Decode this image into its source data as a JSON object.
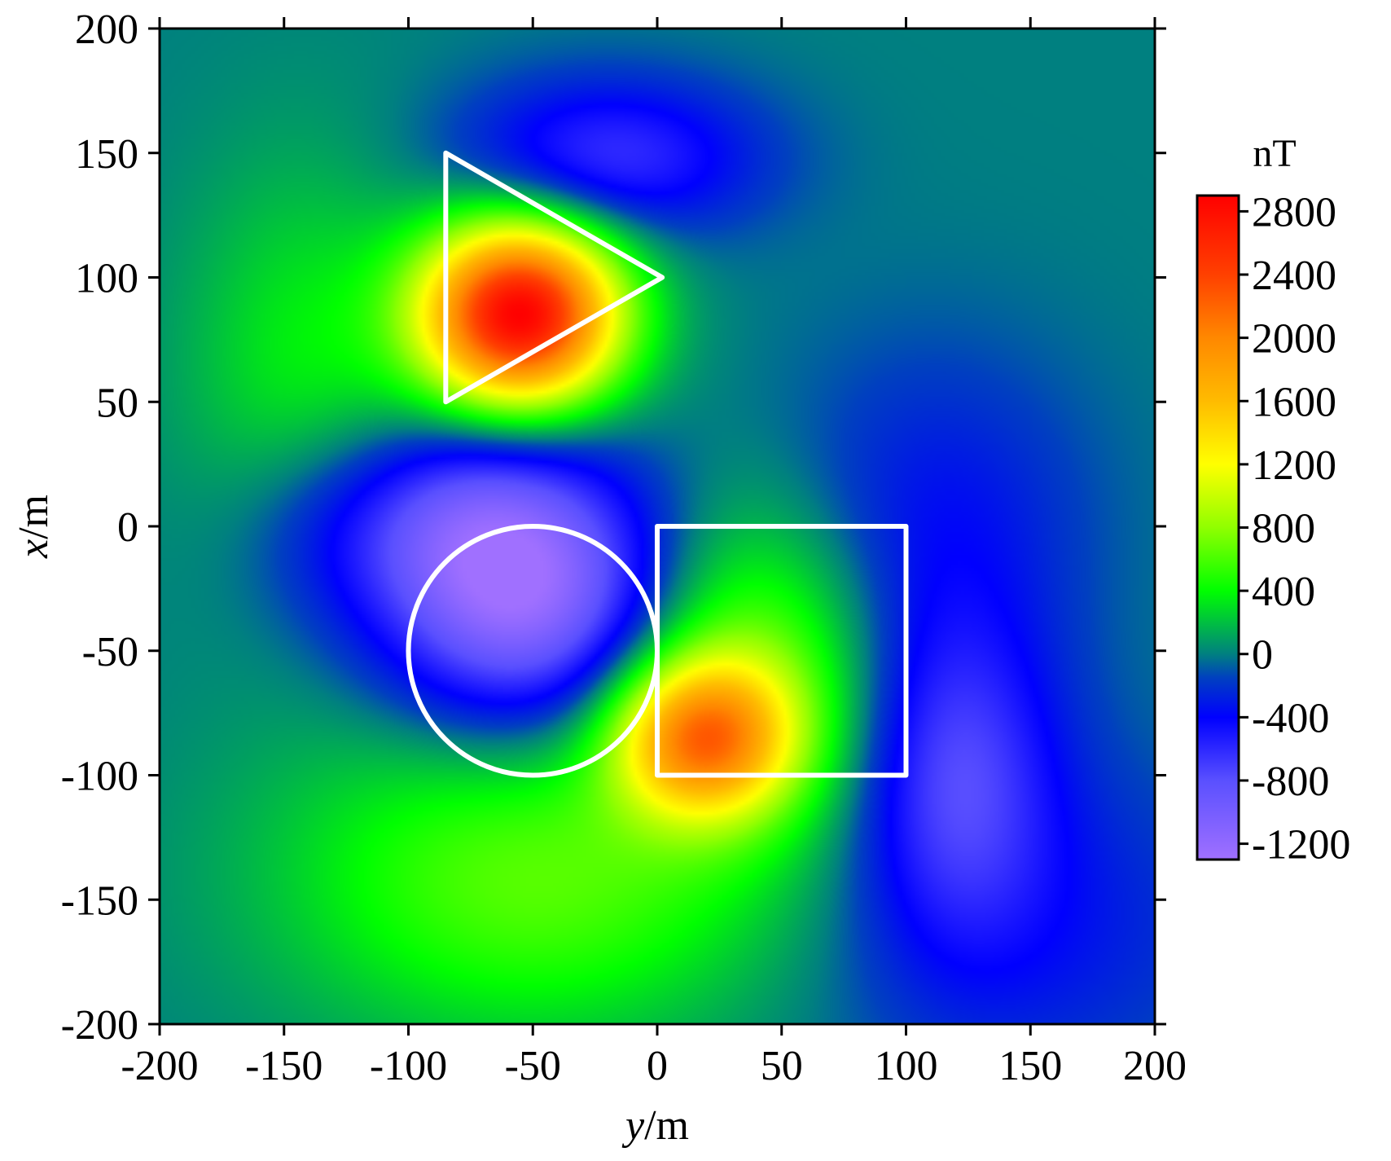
{
  "chart_data": {
    "type": "heatmap",
    "title": "",
    "x_axis": {
      "label_var": "y",
      "label_unit": "/m",
      "range": [
        -200,
        200
      ],
      "ticks": [
        -200,
        -150,
        -100,
        -50,
        0,
        50,
        100,
        150,
        200
      ],
      "tick_labels": [
        "-200",
        "-150",
        "-100",
        "-50",
        "0",
        "50",
        "100",
        "150",
        "200"
      ]
    },
    "y_axis": {
      "label_var": "x",
      "label_unit": "/m",
      "range": [
        -200,
        200
      ],
      "ticks": [
        -200,
        -150,
        -100,
        -50,
        0,
        50,
        100,
        150,
        200
      ],
      "tick_labels": [
        "-200",
        "-150",
        "-100",
        "-50",
        "0",
        "50",
        "100",
        "150",
        "200"
      ]
    },
    "colorbar": {
      "unit": "nT",
      "range": [
        -1300,
        2900
      ],
      "ticks": [
        2800,
        2400,
        2000,
        1600,
        1200,
        800,
        400,
        0,
        -400,
        -800,
        -1200
      ],
      "tick_labels": [
        "2800",
        "2400",
        "2000",
        "1600",
        "1200",
        "800",
        "400",
        "0",
        "-400",
        "-800",
        "-1200"
      ],
      "color_stops": [
        {
          "value": -1300,
          "color": "#a070ff"
        },
        {
          "value": -800,
          "color": "#5a50ff"
        },
        {
          "value": -400,
          "color": "#0000ff"
        },
        {
          "value": -150,
          "color": "#0040c0"
        },
        {
          "value": 0,
          "color": "#008080"
        },
        {
          "value": 400,
          "color": "#00ff00"
        },
        {
          "value": 800,
          "color": "#90ff00"
        },
        {
          "value": 1200,
          "color": "#ffff00"
        },
        {
          "value": 1600,
          "color": "#ffbb00"
        },
        {
          "value": 2000,
          "color": "#ff8800"
        },
        {
          "value": 2400,
          "color": "#ff4000"
        },
        {
          "value": 2900,
          "color": "#ff0000"
        }
      ]
    },
    "anomalies": [
      {
        "y": -55,
        "x": 85,
        "amp": 2900,
        "sy": 28,
        "sx": 26
      },
      {
        "y": -20,
        "x": 148,
        "amp": -650,
        "sy": 42,
        "sx": 22
      },
      {
        "y": -55,
        "x": -25,
        "amp": -1300,
        "sy": 40,
        "sx": 38
      },
      {
        "y": -80,
        "x": 5,
        "amp": -300,
        "sy": 30,
        "sx": 25
      },
      {
        "y": 18,
        "x": -85,
        "amp": 1700,
        "sy": 25,
        "sx": 22
      },
      {
        "y": 40,
        "x": -55,
        "amp": 700,
        "sy": 35,
        "sx": 45
      },
      {
        "y": -50,
        "x": -140,
        "amp": 650,
        "sy": 70,
        "sx": 45
      },
      {
        "y": 120,
        "x": -100,
        "amp": -650,
        "sy": 28,
        "sx": 45
      },
      {
        "y": 110,
        "x": 0,
        "amp": -350,
        "sy": 45,
        "sx": 50
      },
      {
        "y": 150,
        "x": -160,
        "amp": -320,
        "sy": 60,
        "sx": 50
      },
      {
        "y": -140,
        "x": 60,
        "amp": 380,
        "sy": 35,
        "sx": 60
      },
      {
        "y": -130,
        "x": 0,
        "amp": -350,
        "sy": 30,
        "sx": 30
      }
    ],
    "outlines": [
      {
        "shape": "triangle",
        "color": "#ffffff",
        "points": [
          [
            -85,
            150
          ],
          [
            2,
            100
          ],
          [
            -85,
            50
          ]
        ]
      },
      {
        "shape": "circle",
        "color": "#ffffff",
        "center": [
          -50,
          -50
        ],
        "radius": 50
      },
      {
        "shape": "rectangle",
        "color": "#ffffff",
        "y_range": [
          0,
          100
        ],
        "x_range": [
          -100,
          0
        ]
      }
    ]
  }
}
